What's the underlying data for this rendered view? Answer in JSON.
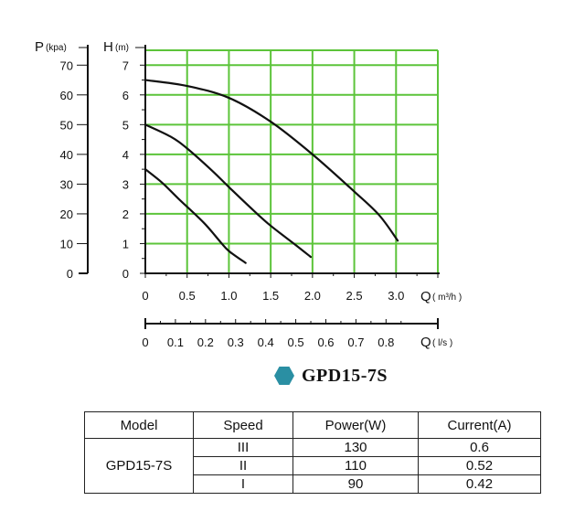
{
  "chart_data": {
    "type": "line",
    "x_axis": {
      "letter": "Q",
      "unit": "( m³/h )",
      "range": [
        0,
        3.5
      ],
      "tick_labels": [
        "0",
        "0.5",
        "1.0",
        "1.5",
        "2.0",
        "2.5",
        "3.0"
      ],
      "tick_values": [
        0,
        0.5,
        1.0,
        1.5,
        2.0,
        2.5,
        3.0
      ]
    },
    "x_axis_secondary": {
      "letter": "Q",
      "unit": "( l/s )",
      "tick_labels": [
        "0",
        "0.1",
        "0.2",
        "0.3",
        "0.4",
        "0.5",
        "0.6",
        "0.7",
        "0.8"
      ],
      "tick_values": [
        0,
        0.1,
        0.2,
        0.3,
        0.4,
        0.5,
        0.6,
        0.7,
        0.8
      ]
    },
    "y_axis": {
      "letter": "H",
      "unit": "(m)",
      "range": [
        0,
        7.5
      ],
      "tick_labels": [
        "0",
        "1",
        "2",
        "3",
        "4",
        "5",
        "6",
        "7"
      ],
      "tick_values": [
        0,
        1,
        2,
        3,
        4,
        5,
        6,
        7
      ]
    },
    "y_axis_secondary": {
      "letter": "P",
      "unit": "(kpa)",
      "tick_labels": [
        "0",
        "10",
        "20",
        "30",
        "40",
        "50",
        "60",
        "70"
      ],
      "tick_values": [
        0,
        10,
        20,
        30,
        40,
        50,
        60,
        70
      ]
    },
    "grid": true,
    "grid_color": "#5cc43a",
    "line_color": "#111111",
    "series": [
      {
        "x": [
          0,
          0.5,
          1.0,
          1.5,
          2.0,
          2.5,
          2.8,
          3.02
        ],
        "y": [
          6.5,
          6.3,
          5.9,
          5.1,
          4.0,
          2.75,
          1.95,
          1.1
        ]
      },
      {
        "x": [
          0,
          0.3,
          0.5,
          0.8,
          1.0,
          1.3,
          1.5,
          1.8,
          1.98
        ],
        "y": [
          5.0,
          4.6,
          4.2,
          3.45,
          2.9,
          2.1,
          1.6,
          0.95,
          0.55
        ]
      },
      {
        "x": [
          0,
          0.2,
          0.4,
          0.7,
          0.9,
          1.0,
          1.2
        ],
        "y": [
          3.5,
          3.05,
          2.5,
          1.7,
          1.05,
          0.75,
          0.35
        ]
      }
    ]
  },
  "product": {
    "name": "GPD15-7S",
    "icon": "hexagon-icon",
    "icon_color": "#2a8fa3"
  },
  "spec_table": {
    "headers": [
      "Model",
      "Speed",
      "Power(W)",
      "Current(A)"
    ],
    "model": "GPD15-7S",
    "rows": [
      {
        "speed": "III",
        "power": "130",
        "current": "0.6"
      },
      {
        "speed": "II",
        "power": "110",
        "current": "0.52"
      },
      {
        "speed": "I",
        "power": "90",
        "current": "0.42"
      }
    ]
  }
}
